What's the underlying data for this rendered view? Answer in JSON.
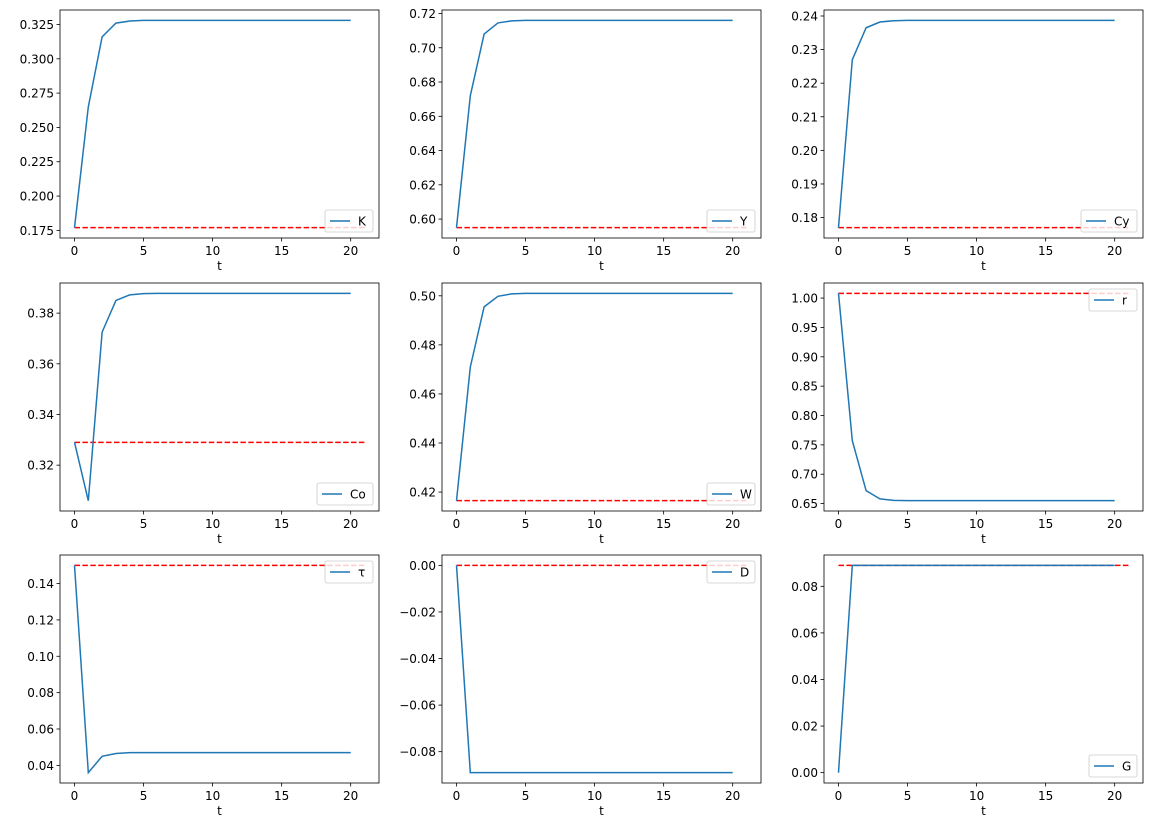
{
  "chart_data": [
    {
      "type": "line",
      "legend": "K",
      "legend_placement": "lower right",
      "xlabel": "t",
      "x": [
        0,
        1,
        2,
        3,
        4,
        5,
        6,
        7,
        8,
        9,
        10,
        11,
        12,
        13,
        14,
        15,
        16,
        17,
        18,
        19,
        20
      ],
      "series": [
        {
          "name": "K",
          "color": "#1f77b4",
          "values": [
            0.177,
            0.265,
            0.316,
            0.326,
            0.3275,
            0.328,
            0.328,
            0.328,
            0.328,
            0.328,
            0.328,
            0.328,
            0.328,
            0.328,
            0.328,
            0.328,
            0.328,
            0.328,
            0.328,
            0.328,
            0.328
          ]
        }
      ],
      "reference": {
        "color": "#ff0000",
        "style": "dashed",
        "x": [
          0,
          21
        ],
        "value": 0.177
      },
      "xticks": [
        0,
        5,
        10,
        15,
        20
      ],
      "xtick_labels": [
        "0",
        "5",
        "10",
        "15",
        "20"
      ],
      "yticks": [
        0.175,
        0.2,
        0.225,
        0.25,
        0.275,
        0.3,
        0.325
      ],
      "ytick_labels": [
        "0.175",
        "0.200",
        "0.225",
        "0.250",
        "0.275",
        "0.300",
        "0.325"
      ]
    },
    {
      "type": "line",
      "legend": "Y",
      "legend_placement": "lower right",
      "xlabel": "t",
      "x": [
        0,
        1,
        2,
        3,
        4,
        5,
        6,
        7,
        8,
        9,
        10,
        11,
        12,
        13,
        14,
        15,
        16,
        17,
        18,
        19,
        20
      ],
      "series": [
        {
          "name": "Y",
          "color": "#1f77b4",
          "values": [
            0.595,
            0.672,
            0.708,
            0.7145,
            0.7157,
            0.716,
            0.716,
            0.716,
            0.716,
            0.716,
            0.716,
            0.716,
            0.716,
            0.716,
            0.716,
            0.716,
            0.716,
            0.716,
            0.716,
            0.716,
            0.716
          ]
        }
      ],
      "reference": {
        "color": "#ff0000",
        "style": "dashed",
        "x": [
          0,
          21
        ],
        "value": 0.595
      },
      "xticks": [
        0,
        5,
        10,
        15,
        20
      ],
      "xtick_labels": [
        "0",
        "5",
        "10",
        "15",
        "20"
      ],
      "yticks": [
        0.6,
        0.62,
        0.64,
        0.66,
        0.68,
        0.7,
        0.72
      ],
      "ytick_labels": [
        "0.60",
        "0.62",
        "0.64",
        "0.66",
        "0.68",
        "0.70",
        "0.72"
      ]
    },
    {
      "type": "line",
      "legend": "Cy",
      "legend_placement": "lower right",
      "xlabel": "t",
      "x": [
        0,
        1,
        2,
        3,
        4,
        5,
        6,
        7,
        8,
        9,
        10,
        11,
        12,
        13,
        14,
        15,
        16,
        17,
        18,
        19,
        20
      ],
      "series": [
        {
          "name": "Cy",
          "color": "#1f77b4",
          "values": [
            0.177,
            0.227,
            0.2365,
            0.2382,
            0.2386,
            0.2387,
            0.2387,
            0.2387,
            0.2387,
            0.2387,
            0.2387,
            0.2387,
            0.2387,
            0.2387,
            0.2387,
            0.2387,
            0.2387,
            0.2387,
            0.2387,
            0.2387,
            0.2387
          ]
        }
      ],
      "reference": {
        "color": "#ff0000",
        "style": "dashed",
        "x": [
          0,
          21
        ],
        "value": 0.177
      },
      "xticks": [
        0,
        5,
        10,
        15,
        20
      ],
      "xtick_labels": [
        "0",
        "5",
        "10",
        "15",
        "20"
      ],
      "yticks": [
        0.18,
        0.19,
        0.2,
        0.21,
        0.22,
        0.23,
        0.24
      ],
      "ytick_labels": [
        "0.18",
        "0.19",
        "0.20",
        "0.21",
        "0.22",
        "0.23",
        "0.24"
      ]
    },
    {
      "type": "line",
      "legend": "Co",
      "legend_placement": "lower right",
      "xlabel": "t",
      "x": [
        0,
        1,
        2,
        3,
        4,
        5,
        6,
        7,
        8,
        9,
        10,
        11,
        12,
        13,
        14,
        15,
        16,
        17,
        18,
        19,
        20
      ],
      "series": [
        {
          "name": "Co",
          "color": "#1f77b4",
          "values": [
            0.329,
            0.306,
            0.3725,
            0.385,
            0.3872,
            0.3877,
            0.3878,
            0.3878,
            0.3878,
            0.3878,
            0.3878,
            0.3878,
            0.3878,
            0.3878,
            0.3878,
            0.3878,
            0.3878,
            0.3878,
            0.3878,
            0.3878,
            0.3878
          ]
        }
      ],
      "reference": {
        "color": "#ff0000",
        "style": "dashed",
        "x": [
          0,
          21
        ],
        "value": 0.329
      },
      "xticks": [
        0,
        5,
        10,
        15,
        20
      ],
      "xtick_labels": [
        "0",
        "5",
        "10",
        "15",
        "20"
      ],
      "yticks": [
        0.32,
        0.34,
        0.36,
        0.38
      ],
      "ytick_labels": [
        "0.32",
        "0.34",
        "0.36",
        "0.38"
      ]
    },
    {
      "type": "line",
      "legend": "W",
      "legend_placement": "lower right",
      "xlabel": "t",
      "x": [
        0,
        1,
        2,
        3,
        4,
        5,
        6,
        7,
        8,
        9,
        10,
        11,
        12,
        13,
        14,
        15,
        16,
        17,
        18,
        19,
        20
      ],
      "series": [
        {
          "name": "W",
          "color": "#1f77b4",
          "values": [
            0.4165,
            0.471,
            0.4955,
            0.4998,
            0.5008,
            0.501,
            0.501,
            0.501,
            0.501,
            0.501,
            0.501,
            0.501,
            0.501,
            0.501,
            0.501,
            0.501,
            0.501,
            0.501,
            0.501,
            0.501,
            0.501
          ]
        }
      ],
      "reference": {
        "color": "#ff0000",
        "style": "dashed",
        "x": [
          0,
          21
        ],
        "value": 0.4165
      },
      "xticks": [
        0,
        5,
        10,
        15,
        20
      ],
      "xtick_labels": [
        "0",
        "5",
        "10",
        "15",
        "20"
      ],
      "yticks": [
        0.42,
        0.44,
        0.46,
        0.48,
        0.5
      ],
      "ytick_labels": [
        "0.42",
        "0.44",
        "0.46",
        "0.48",
        "0.50"
      ]
    },
    {
      "type": "line",
      "legend": "r",
      "legend_placement": "upper right",
      "xlabel": "t",
      "x": [
        0,
        1,
        2,
        3,
        4,
        5,
        6,
        7,
        8,
        9,
        10,
        11,
        12,
        13,
        14,
        15,
        16,
        17,
        18,
        19,
        20
      ],
      "series": [
        {
          "name": "r",
          "color": "#1f77b4",
          "values": [
            1.008,
            0.757,
            0.672,
            0.658,
            0.6555,
            0.655,
            0.655,
            0.655,
            0.655,
            0.655,
            0.655,
            0.655,
            0.655,
            0.655,
            0.655,
            0.655,
            0.655,
            0.655,
            0.655,
            0.655,
            0.655
          ]
        }
      ],
      "reference": {
        "color": "#ff0000",
        "style": "dashed",
        "x": [
          0,
          21
        ],
        "value": 1.008
      },
      "xticks": [
        0,
        5,
        10,
        15,
        20
      ],
      "xtick_labels": [
        "0",
        "5",
        "10",
        "15",
        "20"
      ],
      "yticks": [
        0.65,
        0.7,
        0.75,
        0.8,
        0.85,
        0.9,
        0.95,
        1.0
      ],
      "ytick_labels": [
        "0.65",
        "0.70",
        "0.75",
        "0.80",
        "0.85",
        "0.90",
        "0.95",
        "1.00"
      ]
    },
    {
      "type": "line",
      "legend": "τ",
      "legend_placement": "upper right",
      "xlabel": "t",
      "x": [
        0,
        1,
        2,
        3,
        4,
        5,
        6,
        7,
        8,
        9,
        10,
        11,
        12,
        13,
        14,
        15,
        16,
        17,
        18,
        19,
        20
      ],
      "series": [
        {
          "name": "τ",
          "color": "#1f77b4",
          "values": [
            0.15,
            0.036,
            0.045,
            0.0465,
            0.047,
            0.047,
            0.047,
            0.047,
            0.047,
            0.047,
            0.047,
            0.047,
            0.047,
            0.047,
            0.047,
            0.047,
            0.047,
            0.047,
            0.047,
            0.047,
            0.047
          ]
        }
      ],
      "reference": {
        "color": "#ff0000",
        "style": "dashed",
        "x": [
          0,
          21
        ],
        "value": 0.15
      },
      "xticks": [
        0,
        5,
        10,
        15,
        20
      ],
      "xtick_labels": [
        "0",
        "5",
        "10",
        "15",
        "20"
      ],
      "yticks": [
        0.04,
        0.06,
        0.08,
        0.1,
        0.12,
        0.14
      ],
      "ytick_labels": [
        "0.04",
        "0.06",
        "0.08",
        "0.10",
        "0.12",
        "0.14"
      ]
    },
    {
      "type": "line",
      "legend": "D",
      "legend_placement": "upper right",
      "xlabel": "t",
      "x": [
        0,
        1,
        2,
        3,
        4,
        5,
        6,
        7,
        8,
        9,
        10,
        11,
        12,
        13,
        14,
        15,
        16,
        17,
        18,
        19,
        20
      ],
      "series": [
        {
          "name": "D",
          "color": "#1f77b4",
          "values": [
            0.0,
            -0.089,
            -0.089,
            -0.089,
            -0.089,
            -0.089,
            -0.089,
            -0.089,
            -0.089,
            -0.089,
            -0.089,
            -0.089,
            -0.089,
            -0.089,
            -0.089,
            -0.089,
            -0.089,
            -0.089,
            -0.089,
            -0.089,
            -0.089
          ]
        }
      ],
      "reference": {
        "color": "#ff0000",
        "style": "dashed",
        "x": [
          0,
          21
        ],
        "value": 0.0
      },
      "xticks": [
        0,
        5,
        10,
        15,
        20
      ],
      "xtick_labels": [
        "0",
        "5",
        "10",
        "15",
        "20"
      ],
      "yticks": [
        -0.08,
        -0.06,
        -0.04,
        -0.02,
        0.0
      ],
      "ytick_labels": [
        "−0.08",
        "−0.06",
        "−0.04",
        "−0.02",
        "0.00"
      ]
    },
    {
      "type": "line",
      "legend": "G",
      "legend_placement": "lower right",
      "xlabel": "t",
      "x": [
        0,
        1,
        2,
        3,
        4,
        5,
        6,
        7,
        8,
        9,
        10,
        11,
        12,
        13,
        14,
        15,
        16,
        17,
        18,
        19,
        20
      ],
      "series": [
        {
          "name": "G",
          "color": "#1f77b4",
          "values": [
            0.0,
            0.089,
            0.089,
            0.089,
            0.089,
            0.089,
            0.089,
            0.089,
            0.089,
            0.089,
            0.089,
            0.089,
            0.089,
            0.089,
            0.089,
            0.089,
            0.089,
            0.089,
            0.089,
            0.089,
            0.089
          ]
        }
      ],
      "reference": {
        "color": "#ff0000",
        "style": "dashed",
        "x": [
          0,
          21
        ],
        "value": 0.089
      },
      "xticks": [
        0,
        5,
        10,
        15,
        20
      ],
      "xtick_labels": [
        "0",
        "5",
        "10",
        "15",
        "20"
      ],
      "yticks": [
        0.0,
        0.02,
        0.04,
        0.06,
        0.08
      ],
      "ytick_labels": [
        "0.00",
        "0.02",
        "0.04",
        "0.06",
        "0.08"
      ]
    }
  ]
}
